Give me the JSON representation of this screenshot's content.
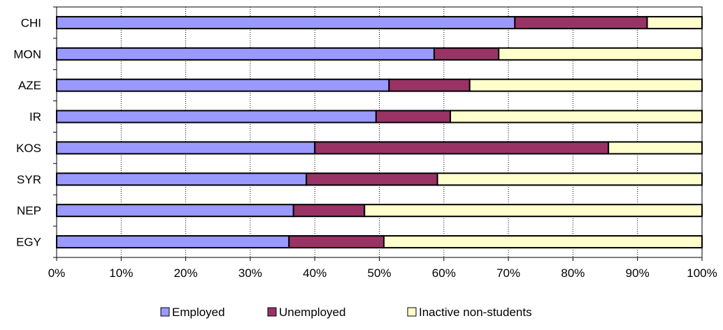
{
  "chart_data": {
    "type": "bar",
    "orientation": "horizontal",
    "stacked": true,
    "percent_stacked": true,
    "categories": [
      "CHI",
      "MON",
      "AZE",
      "IR",
      "KOS",
      "SYR",
      "NEP",
      "EGY"
    ],
    "series": [
      {
        "name": "Employed",
        "color": "#9999ff",
        "values": [
          71,
          58.5,
          51.5,
          49.5,
          40,
          38.7,
          36.7,
          36
        ]
      },
      {
        "name": "Unemployed",
        "color": "#993366",
        "values": [
          20.5,
          10,
          12.5,
          11.5,
          45.5,
          20.3,
          11,
          14.7
        ]
      },
      {
        "name": "Inactive non-students",
        "color": "#ffffcc",
        "values": [
          8.5,
          31.5,
          36,
          39,
          14.5,
          41,
          52.3,
          49.3
        ]
      }
    ],
    "x_ticks": [
      "0%",
      "10%",
      "20%",
      "30%",
      "40%",
      "50%",
      "60%",
      "70%",
      "80%",
      "90%",
      "100%"
    ],
    "xlim": [
      0,
      100
    ],
    "grid": "vertical dotted",
    "legend_position": "bottom"
  }
}
